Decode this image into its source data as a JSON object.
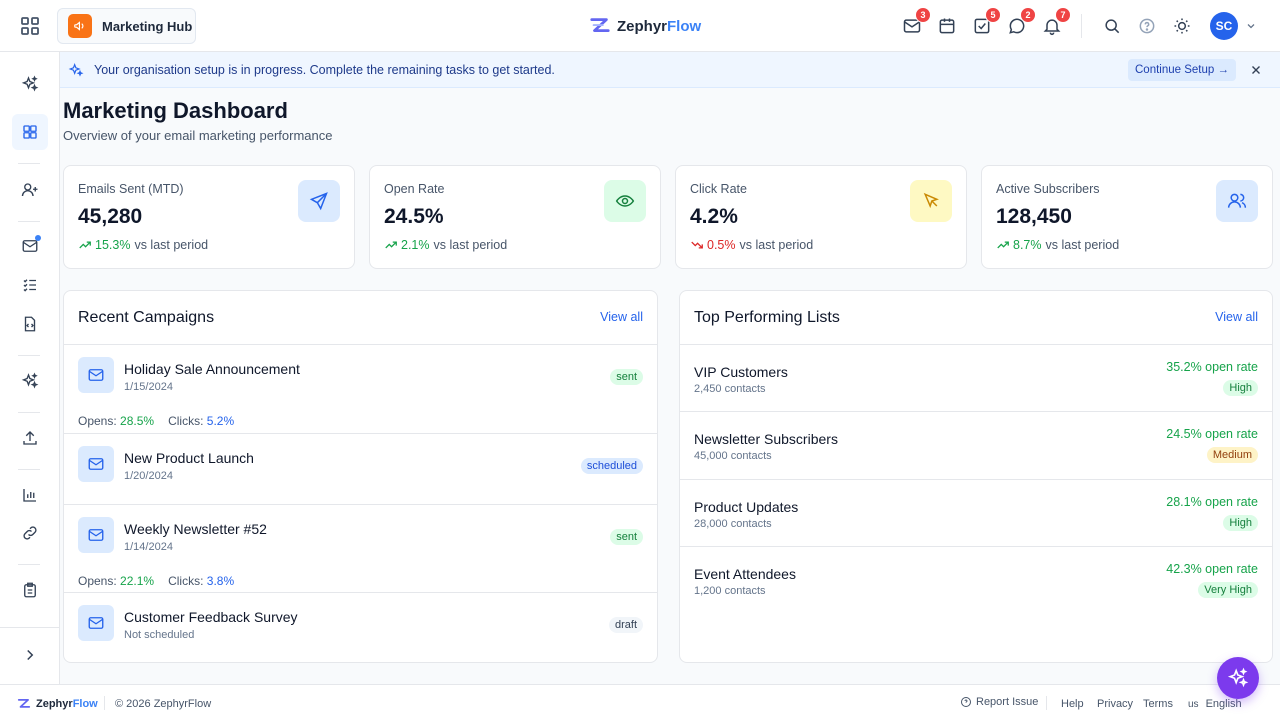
{
  "header": {
    "hub_label": "Marketing Hub",
    "brand_prefix": "Zephyr",
    "brand_suffix": "Flow",
    "badges": {
      "mail": "3",
      "tasks": "5",
      "chat": "2",
      "notifications": "7"
    },
    "avatar_initials": "SC"
  },
  "banner": {
    "text": "Your organisation setup is in progress. Complete the remaining tasks to get started.",
    "button_label": "Continue Setup →"
  },
  "page": {
    "title": "Marketing Dashboard",
    "subtitle": "Overview of your email marketing performance"
  },
  "kpis": [
    {
      "label": "Emails Sent (MTD)",
      "value": "45,280",
      "change": "15.3%",
      "change_suffix": "vs last period",
      "direction": "up",
      "icon": "send-icon",
      "icon_bg": "#dbeafe",
      "icon_color": "#2563eb"
    },
    {
      "label": "Open Rate",
      "value": "24.5%",
      "change": "2.1%",
      "change_suffix": "vs last period",
      "direction": "up",
      "icon": "eye-icon",
      "icon_bg": "#dcfce7",
      "icon_color": "#15803d"
    },
    {
      "label": "Click Rate",
      "value": "4.2%",
      "change": "0.5%",
      "change_suffix": "vs last period",
      "direction": "down",
      "icon": "cursor-icon",
      "icon_bg": "#fef9c3",
      "icon_color": "#ca8a04"
    },
    {
      "label": "Active Subscribers",
      "value": "128,450",
      "change": "8.7%",
      "change_suffix": "vs last period",
      "direction": "up",
      "icon": "users-icon",
      "icon_bg": "#dbeafe",
      "icon_color": "#2563eb"
    }
  ],
  "campaigns": {
    "title": "Recent Campaigns",
    "view_all": "View all",
    "opens_label": "Opens:",
    "clicks_label": "Clicks:",
    "items": [
      {
        "name": "Holiday Sale Announcement",
        "date": "1/15/2024",
        "status": "sent",
        "opens": "28.5%",
        "clicks": "5.2%"
      },
      {
        "name": "New Product Launch",
        "date": "1/20/2024",
        "status": "scheduled"
      },
      {
        "name": "Weekly Newsletter #52",
        "date": "1/14/2024",
        "status": "sent",
        "opens": "22.1%",
        "clicks": "3.8%"
      },
      {
        "name": "Customer Feedback Survey",
        "date": "Not scheduled",
        "status": "draft"
      }
    ]
  },
  "lists": {
    "title": "Top Performing Lists",
    "view_all": "View all",
    "items": [
      {
        "name": "VIP Customers",
        "contacts": "2,450 contacts",
        "rate": "35.2% open rate",
        "tier": "High"
      },
      {
        "name": "Newsletter Subscribers",
        "contacts": "45,000 contacts",
        "rate": "24.5% open rate",
        "tier": "Medium"
      },
      {
        "name": "Product Updates",
        "contacts": "28,000 contacts",
        "rate": "28.1% open rate",
        "tier": "High"
      },
      {
        "name": "Event Attendees",
        "contacts": "1,200 contacts",
        "rate": "42.3% open rate",
        "tier": "Very High"
      }
    ]
  },
  "footer": {
    "brand_prefix": "Zephyr",
    "brand_suffix": "Flow",
    "copyright": "© 2026 ZephyrFlow",
    "report_issue": "Report Issue",
    "help": "Help",
    "privacy": "Privacy",
    "terms": "Terms",
    "lang_code": "us",
    "language": "English"
  }
}
